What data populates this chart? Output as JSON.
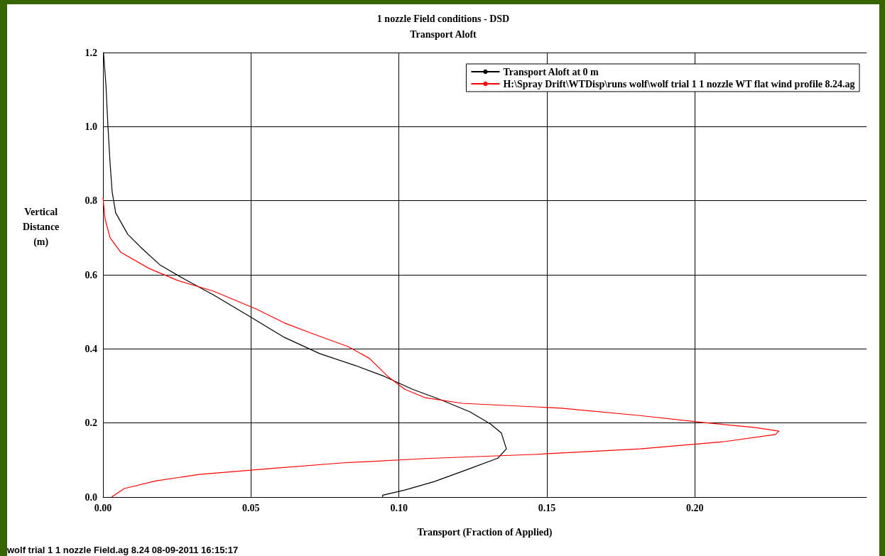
{
  "chart_data": {
    "type": "line",
    "title": "1 nozzle Field conditions - DSD",
    "subtitle": "Transport Aloft",
    "xlabel": "Transport (Fraction of Applied)",
    "ylabel": "Vertical\nDistance\n(m)",
    "annotations": [
      "wolf trial 1 1 nozzle Field.ag 8.24 08-09-2011 16:15:17"
    ],
    "xlim": [
      0,
      0.258
    ],
    "xticks": [
      {
        "value": 0,
        "label": "0.00"
      },
      {
        "value": 0.05,
        "label": "0.05"
      },
      {
        "value": 0.1,
        "label": "0.10"
      },
      {
        "value": 0.15,
        "label": "0.15"
      },
      {
        "value": 0.2,
        "label": "0.20"
      }
    ],
    "ylim": [
      0,
      1.2
    ],
    "yticks": [
      {
        "value": 0,
        "label": "0.0"
      },
      {
        "value": 0.2,
        "label": "0.2"
      },
      {
        "value": 0.4,
        "label": "0.4"
      },
      {
        "value": 0.6,
        "label": "0.6"
      },
      {
        "value": 0.8,
        "label": "0.8"
      },
      {
        "value": 1,
        "label": "1.0"
      },
      {
        "value": 1.2,
        "label": "1.2"
      }
    ],
    "grid": true,
    "legend": "top right",
    "marker": "none",
    "line_style": "solid",
    "series": [
      {
        "name": "Transport Aloft at 0 m",
        "color": "#000000",
        "x": [
          0.0945,
          0.0945,
          0.102,
          0.112,
          0.124,
          0.1334,
          0.1363,
          0.1346,
          0.131,
          0.124,
          0.114,
          0.1046,
          0.095,
          0.0853,
          0.0733,
          0.0613,
          0.0493,
          0.0373,
          0.0276,
          0.0192,
          0.0132,
          0.0084,
          0.0043,
          0.0031,
          0.0024,
          0.0017,
          0.001,
          0.0002
        ],
        "values": [
          0,
          0.005,
          0.019,
          0.042,
          0.077,
          0.105,
          0.13,
          0.173,
          0.197,
          0.23,
          0.263,
          0.291,
          0.326,
          0.355,
          0.387,
          0.431,
          0.489,
          0.546,
          0.588,
          0.627,
          0.671,
          0.709,
          0.767,
          0.824,
          0.901,
          0.997,
          1.112,
          1.198
        ]
      },
      {
        "name": "H:\\Spray Drift\\WTDisp\\runs wolf\\wolf trial 1 1 nozzle WT flat wind profile 8.24.ag",
        "color": "#ff0000",
        "x": [
          0.0029,
          0.0072,
          0.018,
          0.0325,
          0.0565,
          0.0805,
          0.109,
          0.1454,
          0.1815,
          0.2103,
          0.2272,
          0.2284,
          0.22,
          0.2031,
          0.1815,
          0.155,
          0.1214,
          0.109,
          0.102,
          0.0962,
          0.0901,
          0.0829,
          0.0709,
          0.0613,
          0.0517,
          0.0373,
          0.0252,
          0.0156,
          0.006,
          0.0024,
          0.0007,
          0
        ],
        "values": [
          0,
          0.023,
          0.044,
          0.061,
          0.077,
          0.092,
          0.104,
          0.115,
          0.13,
          0.15,
          0.169,
          0.178,
          0.188,
          0.201,
          0.22,
          0.24,
          0.253,
          0.268,
          0.291,
          0.326,
          0.374,
          0.406,
          0.441,
          0.47,
          0.508,
          0.556,
          0.585,
          0.617,
          0.661,
          0.7,
          0.751,
          0.809
        ]
      }
    ]
  }
}
